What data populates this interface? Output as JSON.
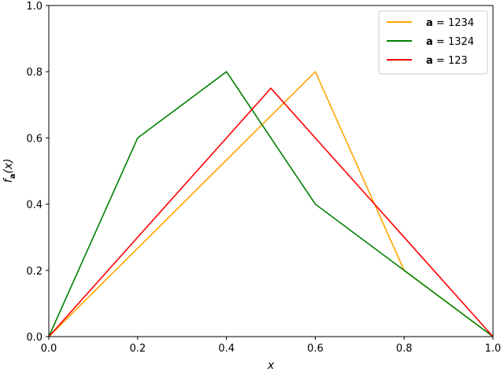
{
  "chart_data": {
    "type": "line",
    "title": "",
    "xlabel": "x",
    "ylabel_main": "f",
    "ylabel_sub": "a",
    "ylabel_arg": "(x)",
    "xlim": [
      0.0,
      1.0
    ],
    "ylim": [
      0.0,
      1.0
    ],
    "xticks": [
      0.0,
      0.2,
      0.4,
      0.6,
      0.8,
      1.0
    ],
    "yticks": [
      0.0,
      0.2,
      0.4,
      0.6,
      0.8,
      1.0
    ],
    "xtick_labels": [
      "0.0",
      "0.2",
      "0.4",
      "0.6",
      "0.8",
      "1.0"
    ],
    "ytick_labels": [
      "0.0",
      "0.2",
      "0.4",
      "0.6",
      "0.8",
      "1.0"
    ],
    "grid": false,
    "legend_position": "top-right",
    "series": [
      {
        "name_bold": "a",
        "name_rest": " = 1234",
        "color": "#FFA500",
        "x": [
          0.0,
          0.6,
          0.8,
          1.0
        ],
        "y": [
          0.0,
          0.8,
          0.2,
          0.0
        ]
      },
      {
        "name_bold": "a",
        "name_rest": " = 1324",
        "color": "#008000",
        "x": [
          0.0,
          0.2,
          0.4,
          0.6,
          0.75,
          1.0
        ],
        "y": [
          0.0,
          0.6,
          0.8,
          0.4,
          0.25,
          0.0
        ]
      },
      {
        "name_bold": "a",
        "name_rest": " = 123",
        "color": "#FF0000",
        "x": [
          0.0,
          0.5,
          1.0
        ],
        "y": [
          0.0,
          0.75,
          0.0
        ]
      }
    ]
  }
}
